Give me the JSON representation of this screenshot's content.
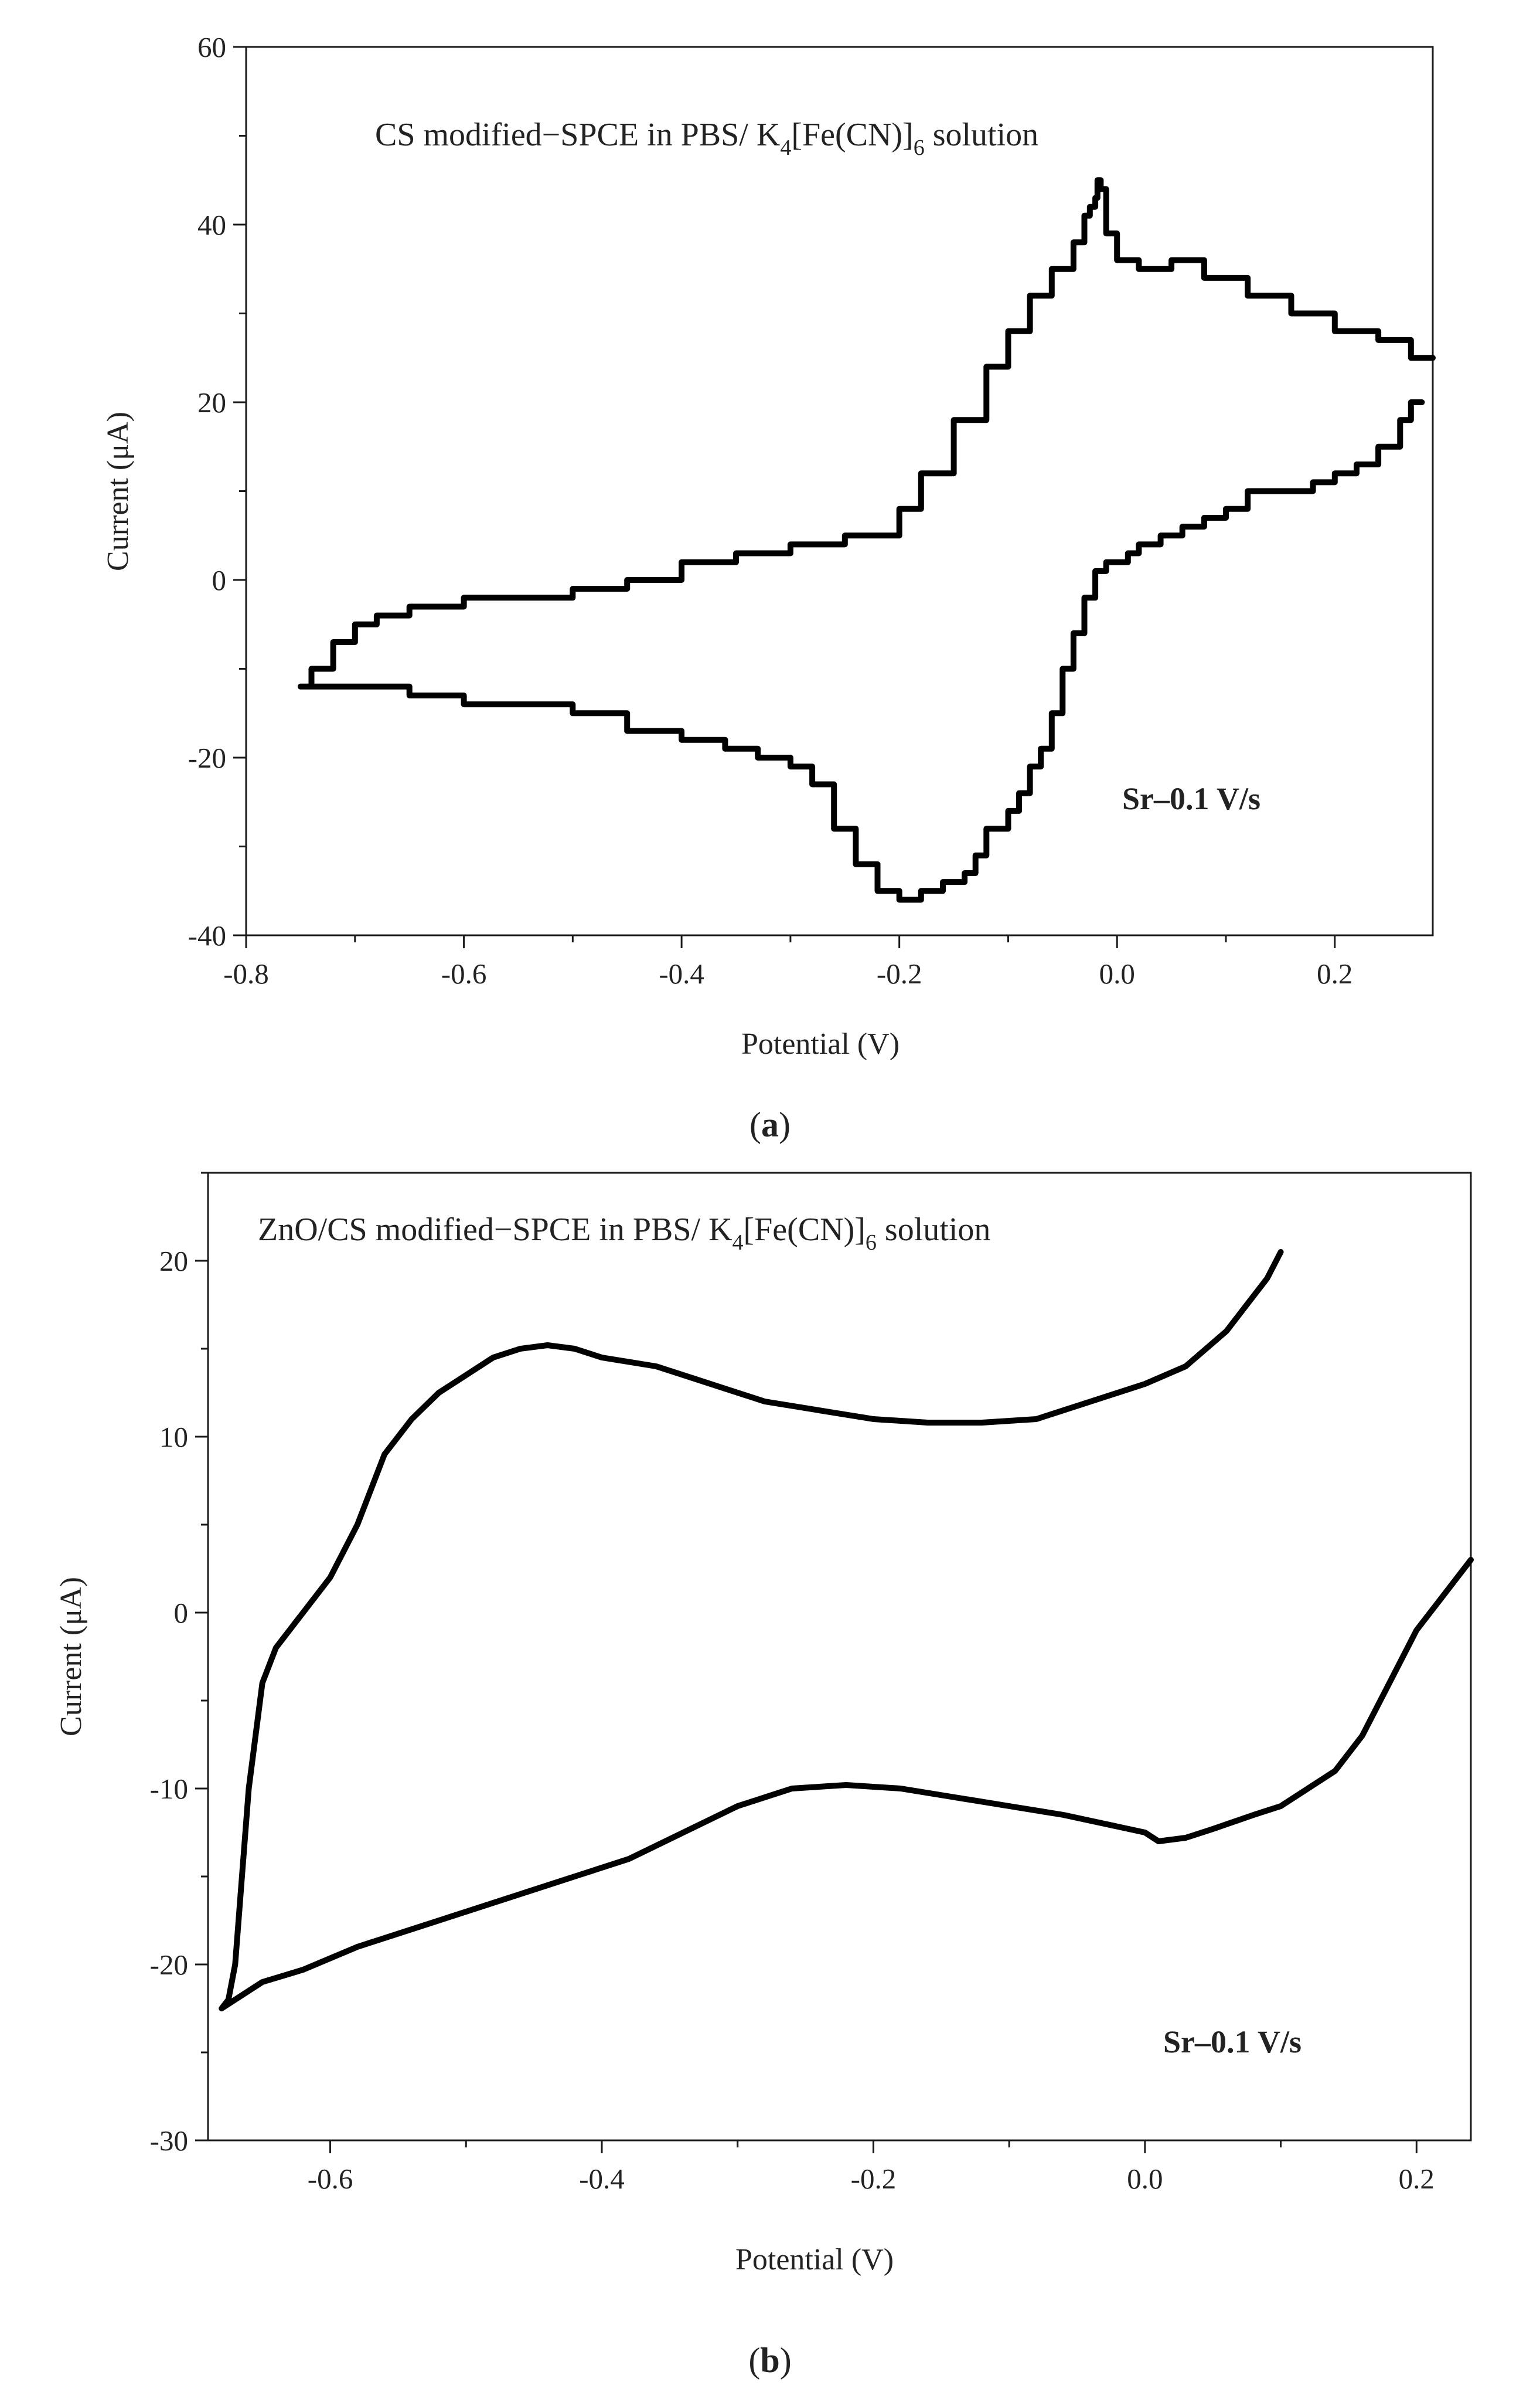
{
  "figure": {
    "panel_a": {
      "caption_open": "(",
      "caption_letter": "a",
      "caption_close": ")"
    },
    "panel_b": {
      "caption_open": "(",
      "caption_letter": "b",
      "caption_close": ")"
    }
  },
  "chart_data": [
    {
      "id": "a",
      "type": "line",
      "title_parts": {
        "prefix": "CS modified−SPCE in PBS/ K",
        "sub1": "4",
        "mid": "[Fe(CN)]",
        "sub2": "6",
        "suffix": " solution"
      },
      "annotation": "Sr–0.1 V/s",
      "xlabel": "Potential (V)",
      "ylabel": "Current (μA)",
      "xlim": [
        -0.8,
        0.29
      ],
      "ylim": [
        -40,
        60
      ],
      "xticks": [
        -0.8,
        -0.6,
        -0.4,
        -0.2,
        0.0,
        0.2
      ],
      "xtick_labels": [
        "-0.8",
        "-0.6",
        "-0.4",
        "-0.2",
        "0.0",
        "0.2"
      ],
      "yticks": [
        -40,
        -20,
        0,
        20,
        40,
        60
      ],
      "ytick_labels": [
        "-40",
        "-20",
        "0",
        "20",
        "40",
        "60"
      ],
      "x_minor": 0.1,
      "y_minor": 10,
      "series": [
        {
          "name": "CS modified-SPCE",
          "step": true,
          "x": [
            0.28,
            0.27,
            0.26,
            0.24,
            0.22,
            0.2,
            0.18,
            0.15,
            0.12,
            0.1,
            0.08,
            0.06,
            0.04,
            0.02,
            0.01,
            0.0,
            -0.01,
            -0.02,
            -0.03,
            -0.04,
            -0.05,
            -0.06,
            -0.07,
            -0.08,
            -0.09,
            -0.1,
            -0.12,
            -0.13,
            -0.14,
            -0.15,
            -0.16,
            -0.17,
            -0.18,
            -0.19,
            -0.2,
            -0.22,
            -0.24,
            -0.26,
            -0.28,
            -0.3,
            -0.33,
            -0.36,
            -0.4,
            -0.45,
            -0.5,
            -0.55,
            -0.6,
            -0.65,
            -0.7,
            -0.75,
            -0.74,
            -0.72,
            -0.7,
            -0.68,
            -0.65,
            -0.6,
            -0.55,
            -0.5,
            -0.45,
            -0.4,
            -0.35,
            -0.3,
            -0.25,
            -0.2,
            -0.18,
            -0.15,
            -0.12,
            -0.1,
            -0.08,
            -0.06,
            -0.04,
            -0.03,
            -0.025,
            -0.02,
            -0.018,
            -0.015,
            -0.01,
            0.0,
            0.02,
            0.05,
            0.08,
            0.12,
            0.16,
            0.2,
            0.24,
            0.27,
            0.29
          ],
          "y": [
            20,
            18,
            15,
            13,
            12,
            11,
            10,
            10,
            8,
            7,
            6,
            5,
            4,
            3,
            2,
            2,
            1,
            -2,
            -6,
            -10,
            -15,
            -19,
            -21,
            -24,
            -26,
            -28,
            -31,
            -33,
            -34,
            -34,
            -35,
            -35,
            -36,
            -36,
            -35,
            -32,
            -28,
            -23,
            -21,
            -20,
            -19,
            -18,
            -17,
            -15,
            -14,
            -14,
            -13,
            -12,
            -12,
            -12,
            -10,
            -7,
            -5,
            -4,
            -3,
            -2,
            -2,
            -1,
            0,
            2,
            3,
            4,
            5,
            8,
            12,
            18,
            24,
            28,
            32,
            35,
            38,
            41,
            42,
            43,
            45,
            44,
            39,
            36,
            35,
            36,
            34,
            32,
            30,
            28,
            27,
            25,
            25
          ]
        }
      ]
    },
    {
      "id": "b",
      "type": "line",
      "title_parts": {
        "prefix": "ZnO/CS modified−SPCE in PBS/ K",
        "sub1": "4",
        "mid": "[Fe(CN)]",
        "sub2": "6",
        "suffix": " solution"
      },
      "annotation": "Sr–0.1 V/s",
      "xlabel": "Potential (V)",
      "ylabel": "Current (μA)",
      "xlim": [
        -0.69,
        0.24
      ],
      "ylim": [
        -30,
        25
      ],
      "xticks": [
        -0.6,
        -0.4,
        -0.2,
        0.0,
        0.2
      ],
      "xtick_labels": [
        "-0.6",
        "-0.4",
        "-0.2",
        "0.0",
        "0.2"
      ],
      "yticks": [
        -30,
        -20,
        -10,
        0,
        10,
        20
      ],
      "ytick_labels": [
        "-30",
        "-20",
        "-10",
        "0",
        "10",
        "20"
      ],
      "x_minor": 0.1,
      "y_minor": 5,
      "series": [
        {
          "name": "ZnO/CS modified-SPCE",
          "step": false,
          "x": [
            0.24,
            0.22,
            0.2,
            0.18,
            0.16,
            0.14,
            0.12,
            0.1,
            0.08,
            0.05,
            0.03,
            0.01,
            0.0,
            -0.03,
            -0.06,
            -0.1,
            -0.14,
            -0.18,
            -0.22,
            -0.26,
            -0.3,
            -0.34,
            -0.38,
            -0.42,
            -0.46,
            -0.5,
            -0.54,
            -0.58,
            -0.62,
            -0.65,
            -0.67,
            -0.68,
            -0.675,
            -0.67,
            -0.665,
            -0.66,
            -0.655,
            -0.65,
            -0.64,
            -0.63,
            -0.62,
            -0.6,
            -0.58,
            -0.56,
            -0.54,
            -0.52,
            -0.5,
            -0.48,
            -0.46,
            -0.44,
            -0.42,
            -0.4,
            -0.36,
            -0.32,
            -0.28,
            -0.24,
            -0.2,
            -0.16,
            -0.12,
            -0.08,
            -0.04,
            0.0,
            0.03,
            0.06,
            0.08,
            0.09,
            0.1
          ],
          "y": [
            3,
            1,
            -1,
            -4,
            -7,
            -9,
            -10,
            -11,
            -11.5,
            -12.3,
            -12.8,
            -13,
            -12.5,
            -12,
            -11.5,
            -11,
            -10.5,
            -10,
            -9.8,
            -10,
            -11,
            -12.5,
            -14,
            -15,
            -16,
            -17,
            -18,
            -19,
            -20.3,
            -21,
            -22,
            -22.5,
            -22,
            -20,
            -15,
            -10,
            -7,
            -4,
            -2,
            -1,
            0,
            2,
            5,
            9,
            11,
            12.5,
            13.5,
            14.5,
            15,
            15.2,
            15,
            14.5,
            14,
            13,
            12,
            11.5,
            11,
            10.8,
            10.8,
            11,
            12,
            13,
            14,
            16,
            18,
            19,
            20.5
          ]
        }
      ]
    }
  ]
}
